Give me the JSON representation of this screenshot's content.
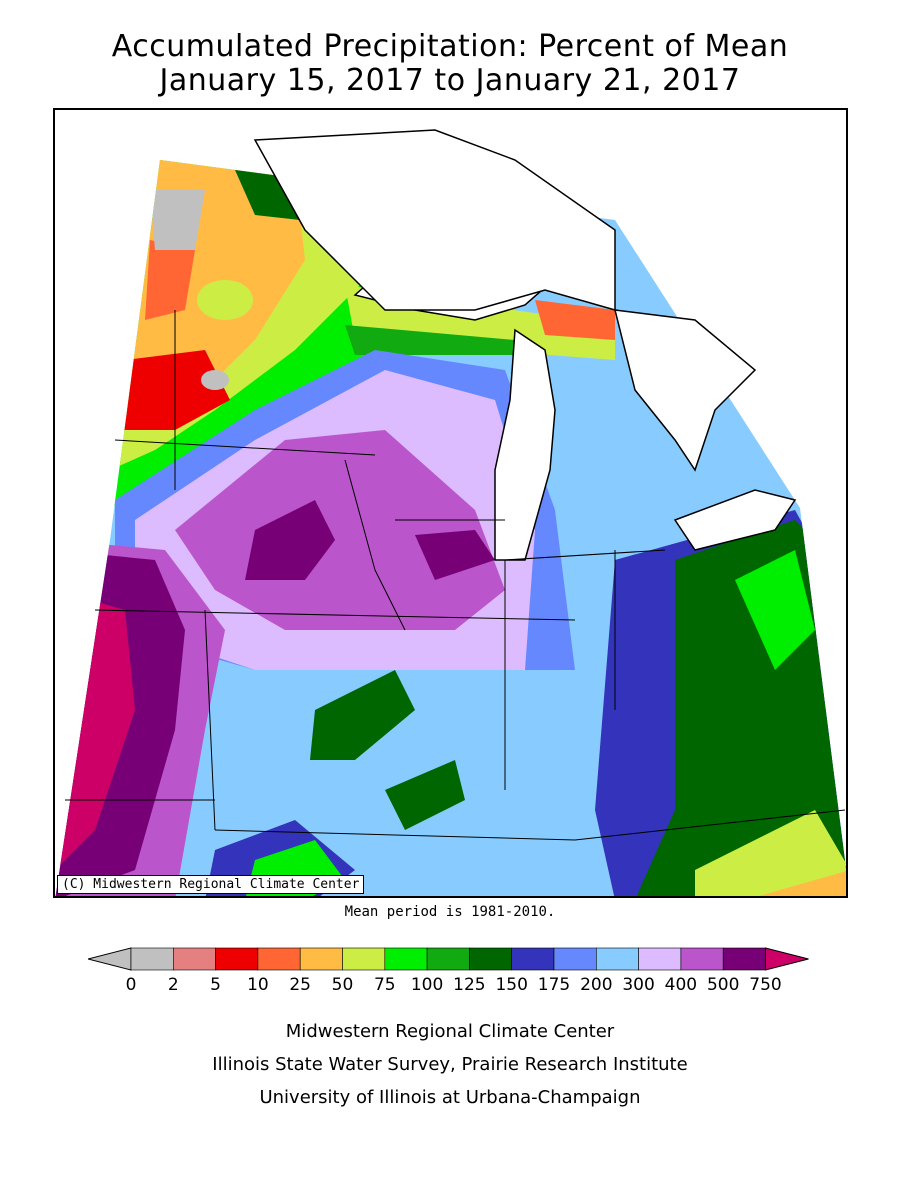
{
  "title": {
    "line1": "Accumulated Precipitation: Percent of Mean",
    "line2": "January 15, 2017 to January 21, 2017"
  },
  "map": {
    "copyright": "(C) Midwestern Regional Climate Center",
    "mean_note": "Mean period is 1981-2010."
  },
  "legend": {
    "ticks": [
      "0",
      "2",
      "5",
      "10",
      "25",
      "50",
      "75",
      "100",
      "125",
      "150",
      "175",
      "200",
      "300",
      "400",
      "500",
      "750"
    ],
    "colors": [
      "#c0c0c0",
      "#e48080",
      "#ee0000",
      "#ff6633",
      "#ffbb44",
      "#ccee44",
      "#00ee00",
      "#11aa11",
      "#006600",
      "#3333bb",
      "#6688ff",
      "#88ccff",
      "#ddbbff",
      "#bb55cc",
      "#770077"
    ],
    "under_color": "#c0c0c0",
    "over_color": "#cc0066"
  },
  "credits": {
    "line1": "Midwestern Regional Climate Center",
    "line2": "Illinois State Water Survey, Prairie Research Institute",
    "line3": "University of Illinois at Urbana-Champaign"
  }
}
